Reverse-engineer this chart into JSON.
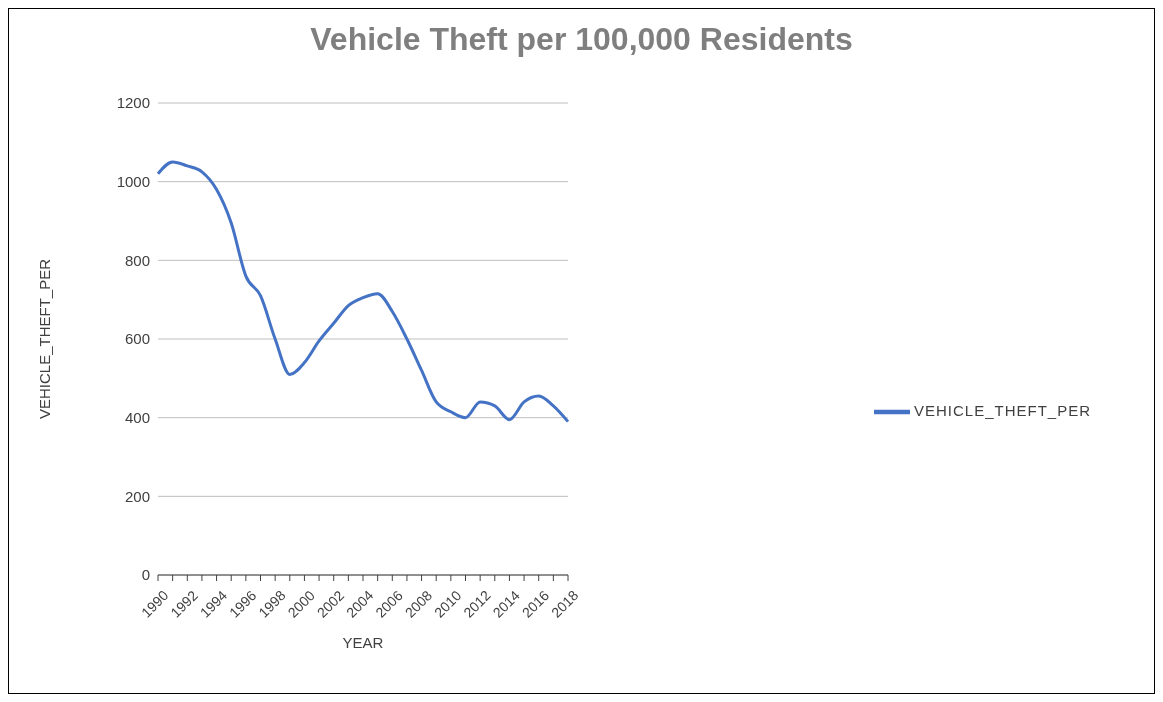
{
  "chart_data": {
    "type": "line",
    "title": "Vehicle Theft per 100,000 Residents",
    "xlabel": "YEAR",
    "ylabel": "VEHICLE_THEFT_PER",
    "categories": [
      "1990",
      null,
      "1992",
      null,
      "1994",
      null,
      "1996",
      null,
      "1998",
      null,
      "2000",
      null,
      "2002",
      null,
      "2004",
      null,
      "2006",
      null,
      "2008",
      null,
      "2010",
      null,
      "2012",
      null,
      "2014",
      null,
      "2016",
      null,
      "2018"
    ],
    "series": [
      {
        "name": "VEHICLE_THEFT_PER",
        "color": "#4472c4",
        "values": [
          1020,
          1050,
          1040,
          1025,
          980,
          895,
          760,
          710,
          600,
          510,
          540,
          595,
          640,
          685,
          705,
          715,
          670,
          600,
          520,
          440,
          415,
          400,
          440,
          430,
          395,
          440,
          455,
          430,
          390
        ]
      }
    ],
    "ylim": [
      0,
      1200
    ],
    "yticks": [
      0,
      200,
      400,
      600,
      800,
      1000,
      1200
    ],
    "grid": "y",
    "legend": "right",
    "marker": "none",
    "line_style": "solid"
  }
}
